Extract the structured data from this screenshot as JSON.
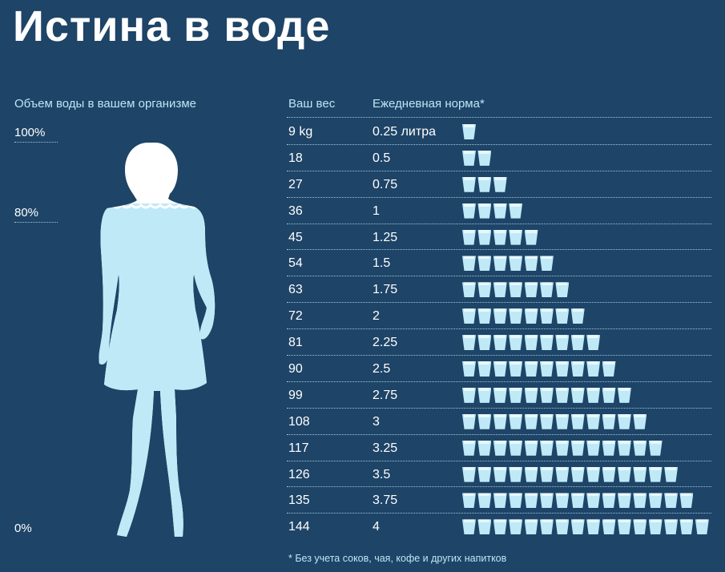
{
  "title": "Истина в воде",
  "left_panel": {
    "header": "Объем воды в вашем организме",
    "levels": [
      "100%",
      "80%",
      "0%"
    ],
    "fill_level_percent": 80
  },
  "colors": {
    "background": "#1e4467",
    "water": "#bfe9f7",
    "text_accent": "#bfe6f5"
  },
  "chart_data": {
    "type": "table",
    "columns": [
      "Ваш вес",
      "Ежедневная норма*"
    ],
    "rows": [
      {
        "weight": "9 kg",
        "norm": "0.25 литра",
        "cups": 1
      },
      {
        "weight": "18",
        "norm": "0.5",
        "cups": 2
      },
      {
        "weight": "27",
        "norm": "0.75",
        "cups": 3
      },
      {
        "weight": "36",
        "norm": "1",
        "cups": 4
      },
      {
        "weight": "45",
        "norm": "1.25",
        "cups": 5
      },
      {
        "weight": "54",
        "norm": "1.5",
        "cups": 6
      },
      {
        "weight": "63",
        "norm": "1.75",
        "cups": 7
      },
      {
        "weight": "72",
        "norm": "2",
        "cups": 8
      },
      {
        "weight": "81",
        "norm": "2.25",
        "cups": 9
      },
      {
        "weight": "90",
        "norm": "2.5",
        "cups": 10
      },
      {
        "weight": "99",
        "norm": "2.75",
        "cups": 11
      },
      {
        "weight": "108",
        "norm": "3",
        "cups": 12
      },
      {
        "weight": "117",
        "norm": "3.25",
        "cups": 13
      },
      {
        "weight": "126",
        "norm": "3.5",
        "cups": 14
      },
      {
        "weight": "135",
        "norm": "3.75",
        "cups": 15
      },
      {
        "weight": "144",
        "norm": "4",
        "cups": 16
      }
    ]
  },
  "footnote": "* Без учета соков, чая, кофе и других напитков"
}
